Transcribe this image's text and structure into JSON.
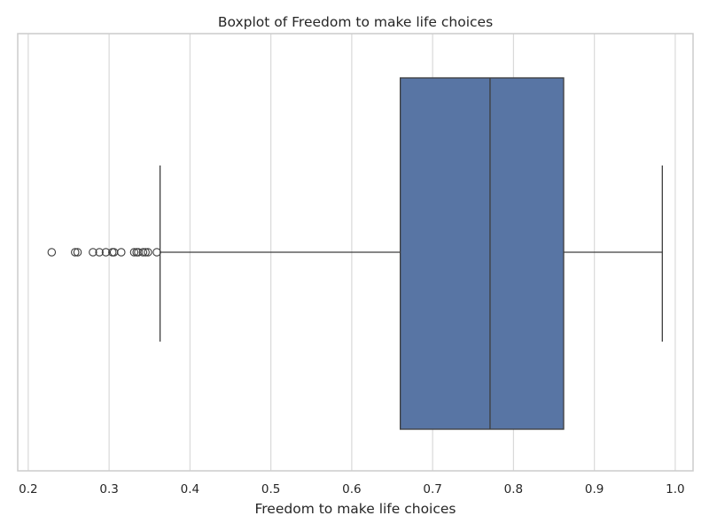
{
  "chart_data": {
    "type": "boxplot",
    "title": "Boxplot of Freedom to make life choices",
    "xlabel": "Freedom to make life choices",
    "ylabel": "",
    "xlim": [
      0.187,
      1.022
    ],
    "xticks": [
      0.2,
      0.3,
      0.4,
      0.5,
      0.6,
      0.7,
      0.8,
      0.9,
      1.0
    ],
    "xtick_labels": [
      "0.2",
      "0.3",
      "0.4",
      "0.5",
      "0.6",
      "0.7",
      "0.8",
      "0.9",
      "1.0"
    ],
    "grid": true,
    "orientation": "horizontal",
    "box": {
      "whisker_low": 0.363,
      "q1": 0.66,
      "median": 0.771,
      "q3": 0.862,
      "whisker_high": 0.984
    },
    "outliers": [
      0.229,
      0.258,
      0.261,
      0.28,
      0.288,
      0.296,
      0.304,
      0.306,
      0.315,
      0.331,
      0.334,
      0.336,
      0.342,
      0.345,
      0.348,
      0.359
    ],
    "colors": {
      "box_fill": "#5875a4",
      "line": "#3d3d3d",
      "grid": "#d9d9d9",
      "spine": "#cccccc",
      "background": "#ffffff"
    }
  }
}
